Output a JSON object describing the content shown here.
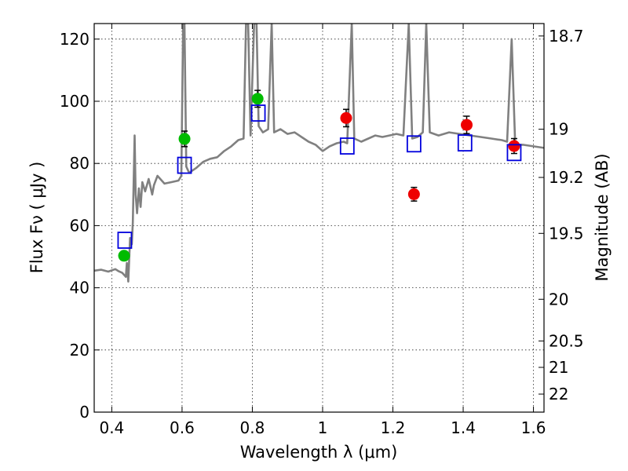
{
  "chart_data": {
    "type": "scatter",
    "xlabel": "Wavelength  λ (μm)",
    "ylabel": "Flux  Fν  ( μJy )",
    "ylabel_right": "Magnitude (AB)",
    "xlim": [
      0.35,
      1.63
    ],
    "ylim": [
      0,
      125
    ],
    "grid": true,
    "x_ticks": [
      0.4,
      0.6,
      0.8,
      1.0,
      1.2,
      1.4,
      1.6
    ],
    "x_tick_labels": [
      "0.4",
      "0.6",
      "0.8",
      "1",
      "1.2",
      "1.4",
      "1.6"
    ],
    "y_ticks": [
      0,
      20,
      40,
      60,
      80,
      100,
      120
    ],
    "y_tick_labels": [
      "0",
      "20",
      "40",
      "60",
      "80",
      "100",
      "120"
    ],
    "right_ticks": [
      {
        "label": "18.7",
        "flux": 121
      },
      {
        "label": "19",
        "flux": 91
      },
      {
        "label": "19.2",
        "flux": 75.5
      },
      {
        "label": "19.5",
        "flux": 57.5
      },
      {
        "label": "20",
        "flux": 36.3
      },
      {
        "label": "20.5",
        "flux": 22.9
      },
      {
        "label": "21",
        "flux": 14.4
      },
      {
        "label": "22",
        "flux": 5.8
      }
    ],
    "colors": {
      "spectrum": "#808080",
      "green": "#00bb00",
      "red": "#ee0000",
      "model": "#0000dd"
    },
    "spectrum": [
      [
        0.35,
        45.5
      ],
      [
        0.37,
        45.8
      ],
      [
        0.39,
        45.2
      ],
      [
        0.41,
        46
      ],
      [
        0.42,
        45.3
      ],
      [
        0.43,
        44.8
      ],
      [
        0.44,
        43.5
      ],
      [
        0.443,
        48
      ],
      [
        0.447,
        42
      ],
      [
        0.452,
        56
      ],
      [
        0.457,
        54
      ],
      [
        0.46,
        61
      ],
      [
        0.465,
        89
      ],
      [
        0.468,
        70
      ],
      [
        0.472,
        64
      ],
      [
        0.477,
        72
      ],
      [
        0.482,
        66
      ],
      [
        0.487,
        74
      ],
      [
        0.495,
        71
      ],
      [
        0.505,
        75
      ],
      [
        0.515,
        70
      ],
      [
        0.52,
        73
      ],
      [
        0.53,
        76
      ],
      [
        0.55,
        73.5
      ],
      [
        0.57,
        74
      ],
      [
        0.59,
        74.5
      ],
      [
        0.598,
        76
      ],
      [
        0.603,
        125
      ],
      [
        0.607,
        125
      ],
      [
        0.612,
        79
      ],
      [
        0.62,
        77
      ],
      [
        0.64,
        78.5
      ],
      [
        0.66,
        80.5
      ],
      [
        0.68,
        81.5
      ],
      [
        0.7,
        82
      ],
      [
        0.72,
        84
      ],
      [
        0.74,
        85.5
      ],
      [
        0.76,
        87.5
      ],
      [
        0.775,
        88
      ],
      [
        0.782,
        125
      ],
      [
        0.788,
        125
      ],
      [
        0.795,
        89
      ],
      [
        0.805,
        125
      ],
      [
        0.812,
        125
      ],
      [
        0.818,
        92
      ],
      [
        0.83,
        90
      ],
      [
        0.845,
        91
      ],
      [
        0.855,
        125
      ],
      [
        0.862,
        90
      ],
      [
        0.88,
        91
      ],
      [
        0.9,
        89.5
      ],
      [
        0.92,
        90
      ],
      [
        0.94,
        88.5
      ],
      [
        0.96,
        87
      ],
      [
        0.98,
        86
      ],
      [
        1.0,
        84
      ],
      [
        1.02,
        85.5
      ],
      [
        1.04,
        86.5
      ],
      [
        1.06,
        87
      ],
      [
        1.07,
        86.5
      ],
      [
        1.083,
        125
      ],
      [
        1.09,
        88
      ],
      [
        1.11,
        87
      ],
      [
        1.13,
        88
      ],
      [
        1.15,
        89
      ],
      [
        1.17,
        88.5
      ],
      [
        1.19,
        89
      ],
      [
        1.21,
        89.5
      ],
      [
        1.23,
        89
      ],
      [
        1.245,
        125
      ],
      [
        1.255,
        88
      ],
      [
        1.27,
        88.5
      ],
      [
        1.285,
        90
      ],
      [
        1.295,
        125
      ],
      [
        1.305,
        90
      ],
      [
        1.33,
        89
      ],
      [
        1.36,
        90
      ],
      [
        1.39,
        89.5
      ],
      [
        1.42,
        89
      ],
      [
        1.45,
        88.5
      ],
      [
        1.48,
        88
      ],
      [
        1.51,
        87.5
      ],
      [
        1.525,
        87
      ],
      [
        1.538,
        120
      ],
      [
        1.548,
        86
      ],
      [
        1.57,
        86
      ],
      [
        1.6,
        85.5
      ],
      [
        1.63,
        85
      ]
    ],
    "observed_green": [
      {
        "x": 0.435,
        "y": 50.3,
        "err": 1.3
      },
      {
        "x": 0.607,
        "y": 87.9,
        "err": 2.5
      },
      {
        "x": 0.815,
        "y": 100.8,
        "err": 2.7
      }
    ],
    "observed_red": [
      {
        "x": 1.067,
        "y": 94.6,
        "err": 2.8
      },
      {
        "x": 1.26,
        "y": 70.1,
        "err": 2.2
      },
      {
        "x": 1.41,
        "y": 92.4,
        "err": 2.8
      },
      {
        "x": 1.545,
        "y": 85.6,
        "err": 2.4
      }
    ],
    "model": [
      {
        "x": 0.437,
        "y": 55.3
      },
      {
        "x": 0.607,
        "y": 79.4
      },
      {
        "x": 0.817,
        "y": 96.2
      },
      {
        "x": 1.07,
        "y": 85.6
      },
      {
        "x": 1.26,
        "y": 86.3
      },
      {
        "x": 1.405,
        "y": 86.6
      },
      {
        "x": 1.545,
        "y": 83.5
      }
    ]
  }
}
